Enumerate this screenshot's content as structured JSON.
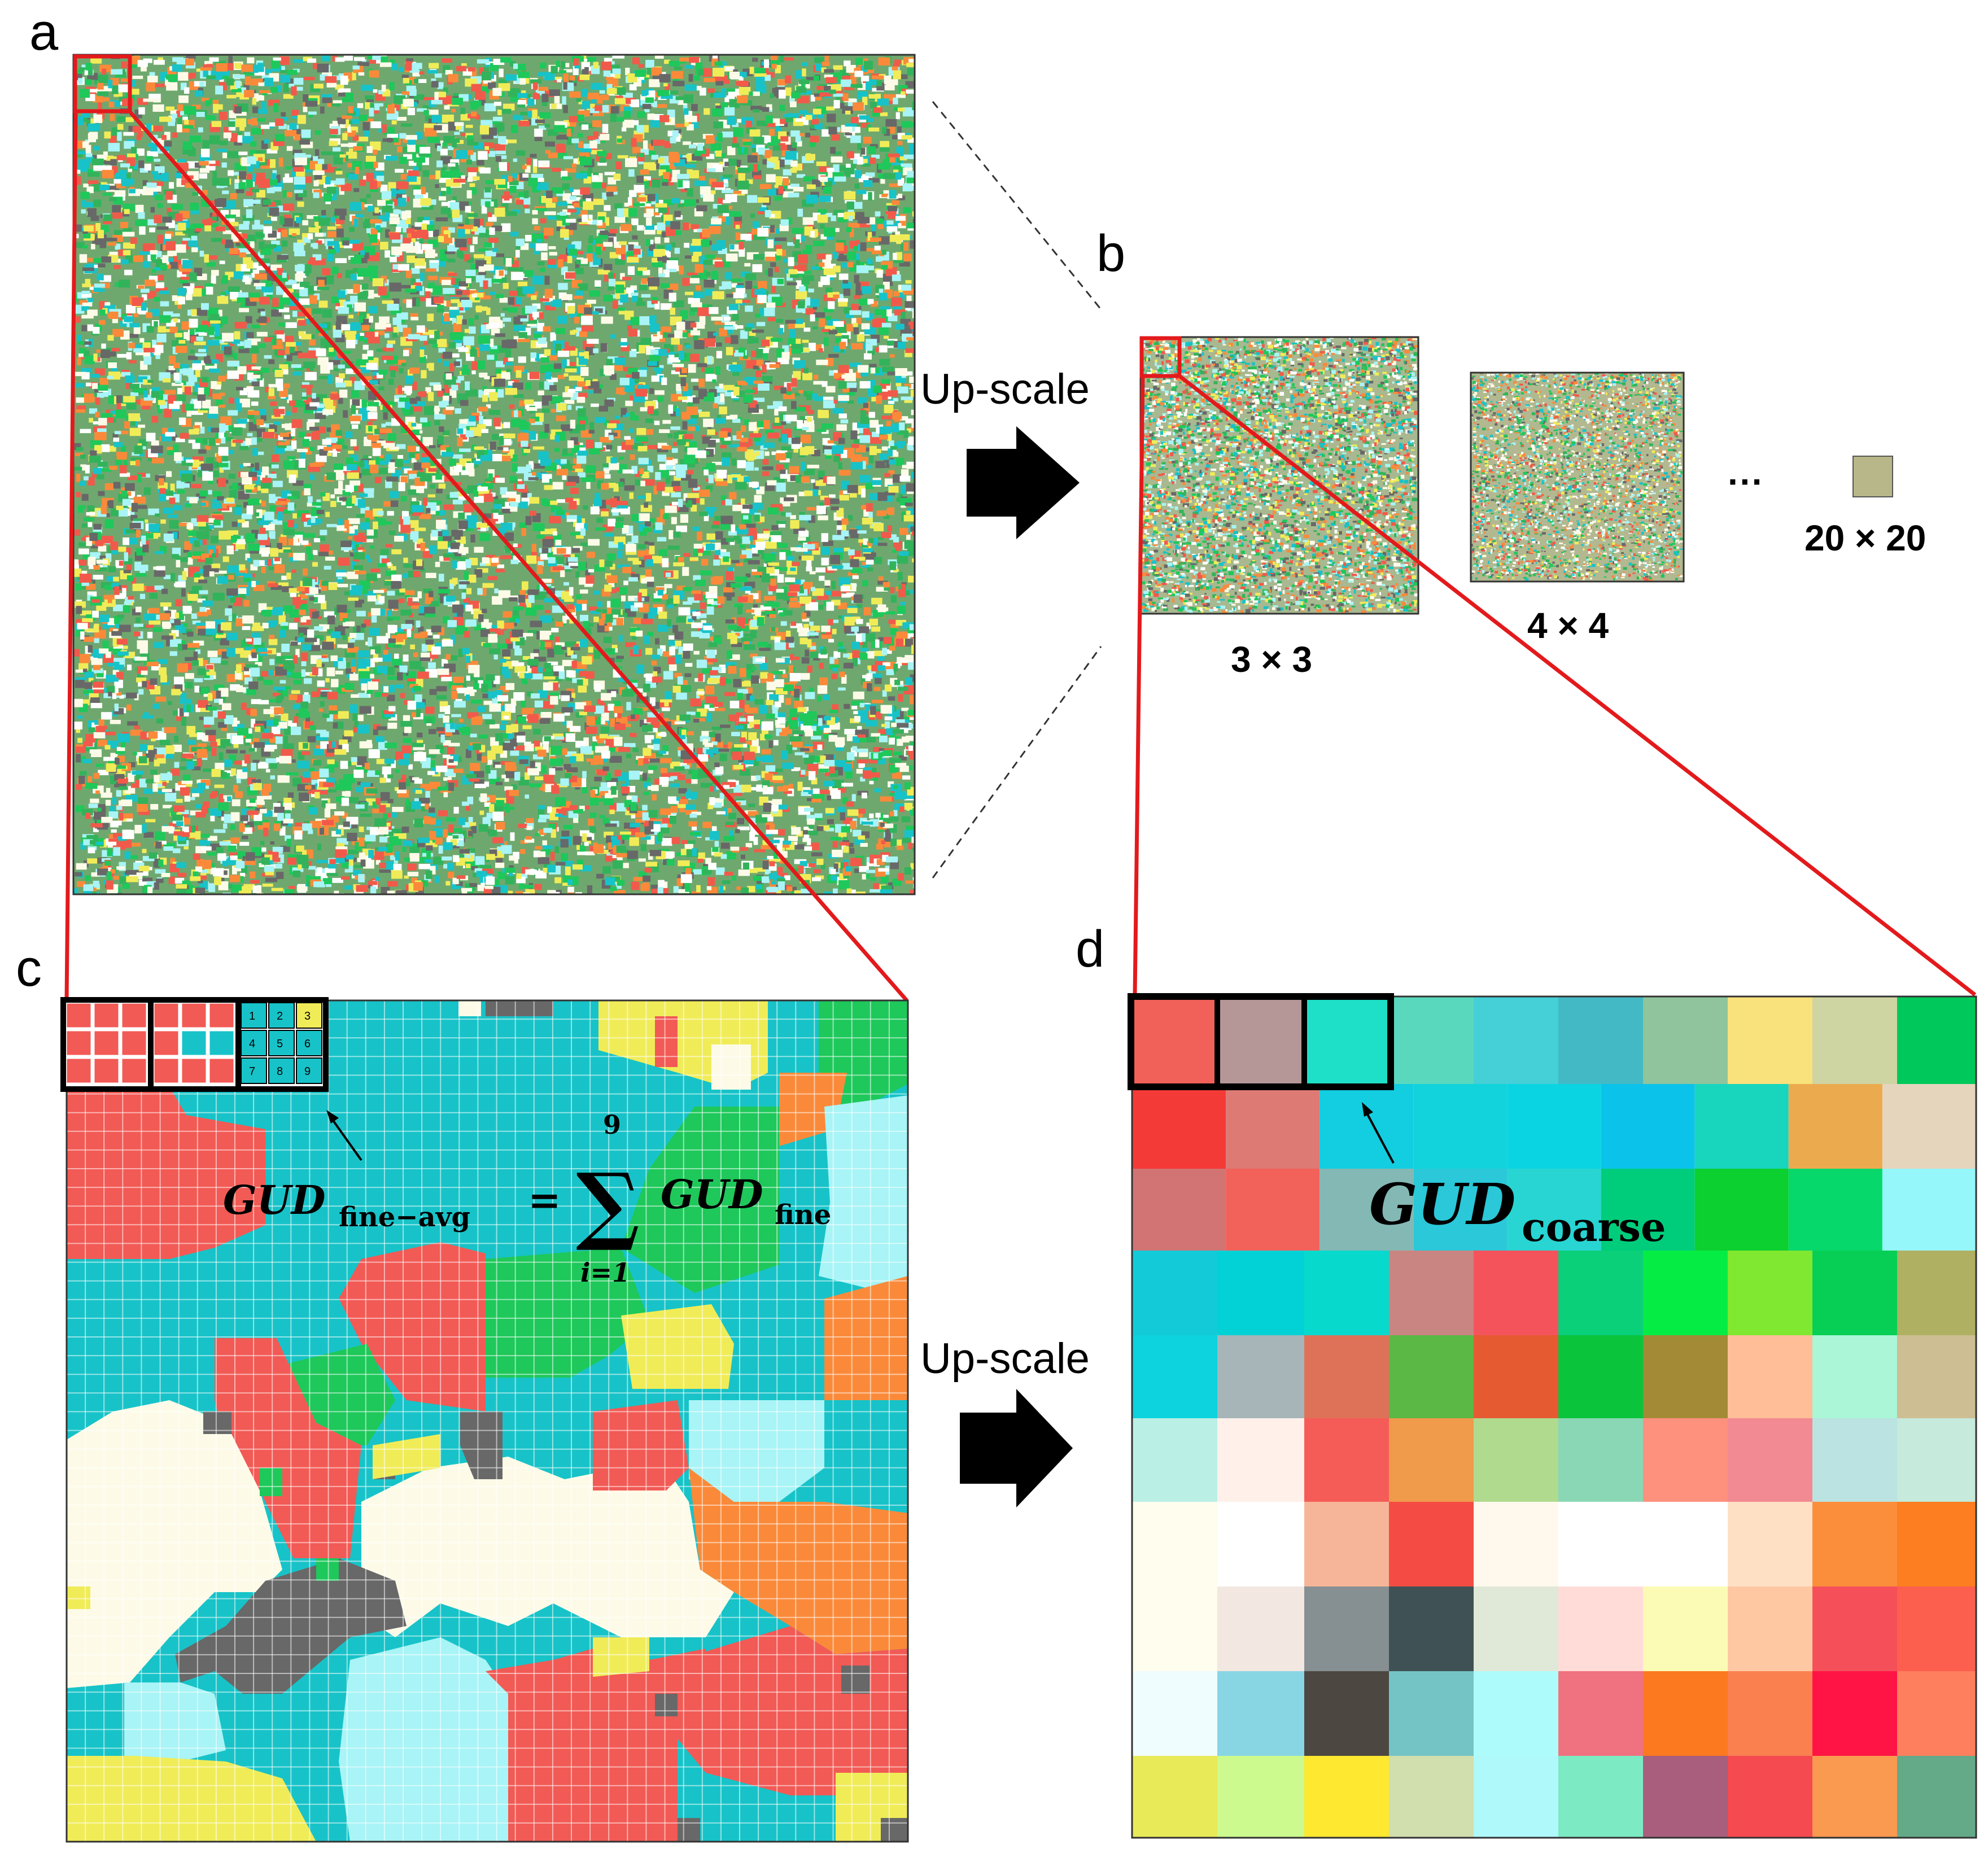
{
  "panels": {
    "a": "a",
    "b": "b",
    "c": "c",
    "d": "d"
  },
  "upscale_label": "Up-scale",
  "scales": {
    "s3": "3 × 3",
    "s4": "4 × 4",
    "s20": "20 × 20",
    "ellipsis": "···"
  },
  "equation_c": {
    "lhs": "GUD",
    "lhs_sub": "fine−avg",
    "equals": "=",
    "sum": "∑",
    "sum_upper": "9",
    "sum_lower": "i=1",
    "rhs": "GUD",
    "rhs_sub": "fine"
  },
  "equation_d": {
    "main": "GUD",
    "sub": "coarse"
  },
  "inset_numbers": [
    "1",
    "2",
    "3",
    "4",
    "5",
    "6",
    "7",
    "8",
    "9"
  ],
  "colors": {
    "highlight": "#e31a1c",
    "red": "#f25a55",
    "cyan": "#17c3c8",
    "green": "#1ec85a",
    "cream": "#fdfbe8",
    "lightcyan": "#a8f4f6",
    "orange": "#fa8a3a",
    "yellow": "#f0ec58",
    "gray": "#686868",
    "coarse_grid": [
      [
        "#f2605a",
        "#b69798",
        "#1ee0c8",
        "#5ad8be",
        "#45cfd6",
        "#44b9c6",
        "#8fc49c",
        "#f9e17c",
        "#cfd4a3",
        "#00c85a"
      ],
      [
        "#f43a36",
        "#dd7a74",
        "#13cde0",
        "#12d3db",
        "#0bd4e2",
        "#0bc3ea",
        "#18d5be",
        "#ecaa4e",
        "#e6d5bd"
      ],
      [
        "#d27474",
        "#f2615a",
        "#84b8b4",
        "#2ac8d8",
        "#28d5d2",
        "#00cd7c",
        "#0ccf30",
        "#07d86c",
        "#95f7fa"
      ],
      [
        "#13cad8",
        "#02d1d6",
        "#08d9cd",
        "#c98582",
        "#f5535b",
        "#0ad07a",
        "#05ed45",
        "#80e830",
        "#07cf55",
        "#b0b062"
      ],
      [
        "#0cd3de",
        "#a7b5b8",
        "#de7258",
        "#5bb844",
        "#e65a32",
        "#0ac43c",
        "#a38a37",
        "#ffbe98",
        "#aaf6d6",
        "#cdbe93"
      ],
      [
        "#baefe6",
        "#fff0ea",
        "#f55c58",
        "#f09a4c",
        "#b0da8e",
        "#8ad7b6",
        "#fe907e",
        "#f18a92",
        "#bae3e2",
        "#c6eadc"
      ],
      [
        "#fefdee",
        "#ffffff",
        "#f6b598",
        "#f44c44",
        "#fff9ed",
        "#ffffff",
        "#ffffff",
        "#fee0c4",
        "#fb8e3a",
        "#fc7e20"
      ],
      [
        "#fefdee",
        "#f3e7e1",
        "#868f91",
        "#3f5154",
        "#e0e8d8",
        "#ffdcd8",
        "#fbfbb6",
        "#fec8a2",
        "#f5505a",
        "#fc5f4d"
      ],
      [
        "#effdfe",
        "#88d5e4",
        "#4c4841",
        "#74c4c6",
        "#adfbfb",
        "#f07280",
        "#fc7920",
        "#fa8050",
        "#ff1445",
        "#fe7f5e"
      ],
      [
        "#e8ea58",
        "#ccfa8e",
        "#fee830",
        "#d1deae",
        "#aff9fa",
        "#7ceac3",
        "#a85e7c",
        "#f54a50",
        "#f99a50",
        "#64aa88"
      ]
    ]
  }
}
